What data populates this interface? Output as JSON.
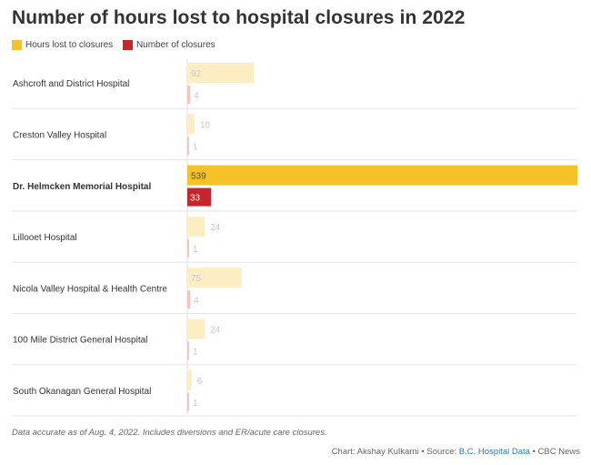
{
  "title": "Number of hours lost to hospital closures in 2022",
  "legend": [
    {
      "label": "Hours lost to closures",
      "color": "#f5c227"
    },
    {
      "label": "Number of closures",
      "color": "#c8242b"
    }
  ],
  "chart_data": {
    "type": "bar",
    "categories": [
      "Ashcroft and District Hospital",
      "Creston Valley Hospital",
      "Dr. Helmcken Memorial Hospital",
      "Lillooet Hospital",
      "Nicola Valley Hospital & Health Centre",
      "100 Mile District General Hospital",
      "South Okanagan General Hospital"
    ],
    "series": [
      {
        "name": "Hours lost to closures",
        "values": [
          92,
          10,
          539,
          24,
          75,
          24,
          6
        ]
      },
      {
        "name": "Number of closures",
        "values": [
          4,
          1,
          33,
          1,
          4,
          1,
          1
        ]
      }
    ],
    "highlight": "Dr. Helmcken Memorial Hospital",
    "colors": {
      "hours": "#f5c227",
      "hours_faded": "#fcedc3",
      "closures": "#c8242b",
      "closures_faded": "#f0c5c7"
    },
    "xlim": [
      0,
      539
    ]
  },
  "note": "Data accurate as of Aug. 4, 2022. Includes diversions and ER/acute care closures.",
  "credit": {
    "prefix": "Chart: Akshay Kulkarni • Source: ",
    "source": "B.C. Hospital Data",
    "suffix": " • CBC News"
  }
}
